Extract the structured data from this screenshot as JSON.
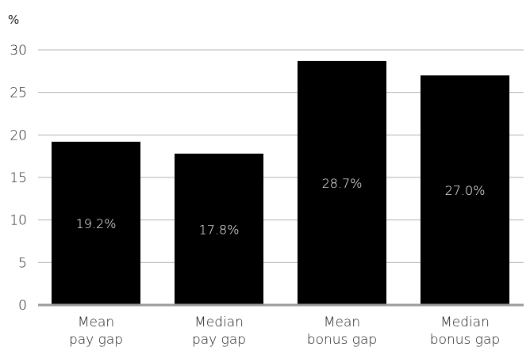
{
  "chart_data": {
    "type": "bar",
    "ylabel": "%",
    "categories": [
      [
        "Mean",
        "pay gap"
      ],
      [
        "Median",
        "pay gap"
      ],
      [
        "Mean",
        "bonus gap"
      ],
      [
        "Median",
        "bonus gap"
      ]
    ],
    "values": [
      19.2,
      17.8,
      28.7,
      27.0
    ],
    "data_labels": [
      "19.2%",
      "17.8%",
      "28.7%",
      "27.0%"
    ],
    "yticks": [
      "0",
      "5",
      "10",
      "15",
      "20",
      "25",
      "30"
    ],
    "ylim": [
      0,
      30
    ],
    "grid": true,
    "colors": {
      "bar": "#000000",
      "grid": "#b3b3b3",
      "axis": "#9a9a9a",
      "bar_label": "#ffffff"
    }
  }
}
